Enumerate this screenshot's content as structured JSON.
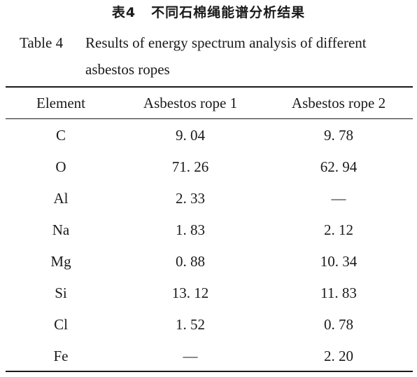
{
  "caption": {
    "cn_number": "表4",
    "cn_title": "不同石棉绳能谱分析结果",
    "en_label": "Table 4",
    "en_title": "Results of energy spectrum analysis of different asbestos ropes"
  },
  "table": {
    "headers": [
      "Element",
      "Asbestos rope 1",
      "Asbestos rope 2"
    ],
    "rows": [
      [
        "C",
        "9. 04",
        "9. 78"
      ],
      [
        "O",
        "71. 26",
        "62. 94"
      ],
      [
        "Al",
        "2. 33",
        "—"
      ],
      [
        "Na",
        "1. 83",
        "2. 12"
      ],
      [
        "Mg",
        "0. 88",
        "10. 34"
      ],
      [
        "Si",
        "13. 12",
        "11. 83"
      ],
      [
        "Cl",
        "1. 52",
        "0. 78"
      ],
      [
        "Fe",
        "—",
        "2. 20"
      ]
    ]
  }
}
